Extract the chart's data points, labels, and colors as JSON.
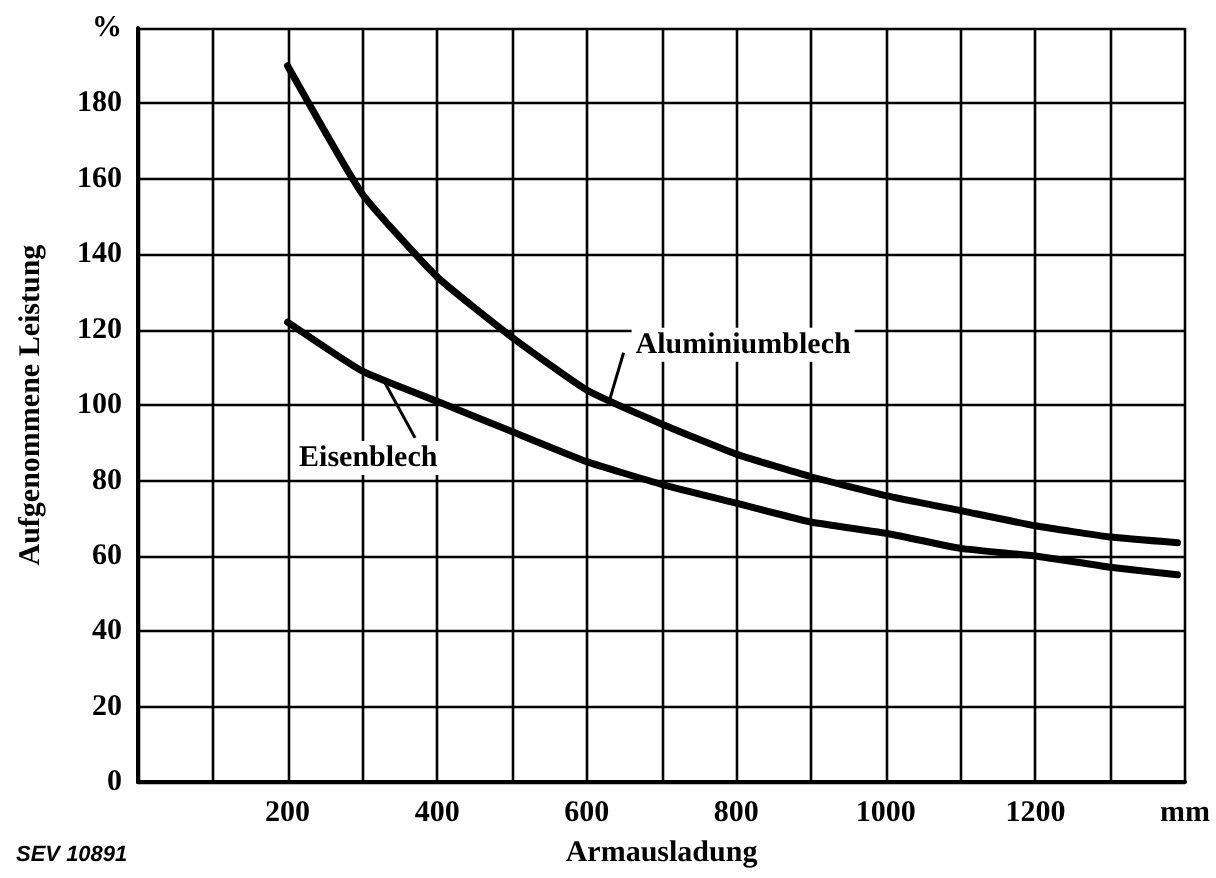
{
  "chart_data": {
    "type": "line",
    "xlabel": "Armausladung",
    "ylabel": "Aufgenommene Leistung",
    "x": [
      200,
      300,
      400,
      500,
      600,
      700,
      800,
      900,
      1000,
      1100,
      1200,
      1300,
      1390
    ],
    "series": [
      {
        "name": "Aluminiumblech",
        "color": "#000000",
        "values": [
          190,
          156,
          134,
          118,
          104,
          95,
          87,
          81,
          76,
          72,
          68,
          65,
          63.5
        ]
      },
      {
        "name": "Eisenblech",
        "color": "#000000",
        "values": [
          122,
          109,
          101,
          93,
          85,
          79,
          74,
          69,
          66,
          62,
          60,
          57,
          55
        ]
      }
    ],
    "xlim": [
      0,
      1400
    ],
    "xticks": [
      {
        "value": 0,
        "label": null
      },
      {
        "value": 100,
        "label": null
      },
      200,
      {
        "value": 300,
        "label": null
      },
      400,
      {
        "value": 500,
        "label": null
      },
      600,
      {
        "value": 700,
        "label": null
      },
      800,
      {
        "value": 900,
        "label": null
      },
      1000,
      {
        "value": 1100,
        "label": null
      },
      1200,
      {
        "value": 1300,
        "label": null
      },
      {
        "value": 1400,
        "label": "mm"
      }
    ],
    "ylim": [
      0,
      200
    ],
    "yticks": [
      0,
      20,
      40,
      60,
      80,
      100,
      120,
      140,
      160,
      180,
      {
        "value": 200,
        "label": "%"
      }
    ],
    "annotations": [
      "SEV 10891"
    ],
    "grid": true,
    "line_style": "solid"
  }
}
